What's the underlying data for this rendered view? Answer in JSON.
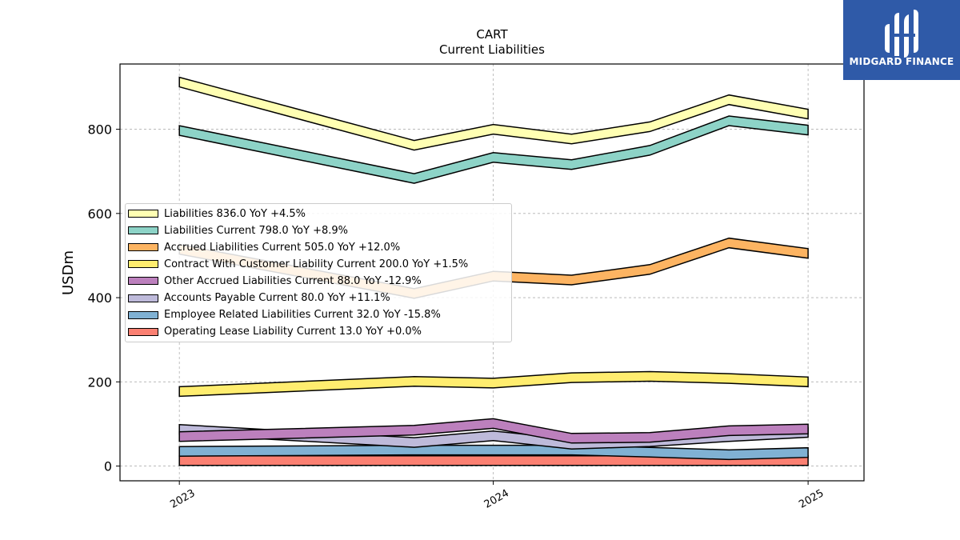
{
  "chart_data": {
    "type": "area",
    "title": "CART",
    "subtitle": "Current  Liabilities",
    "ylabel": "USDm",
    "ylim": [
      -35,
      955
    ],
    "yticks": [
      0,
      200,
      400,
      600,
      800
    ],
    "xticks": [
      "2023",
      "2024",
      "2025"
    ],
    "grid": true,
    "legend_position": "center-left",
    "x": [
      "2023-01-01",
      "2023-10-01",
      "2024-01-01",
      "2024-04-01",
      "2024-07-01",
      "2024-10-01",
      "2025-01-01"
    ],
    "series": [
      {
        "name": "Liabilities",
        "legend": "Liabilities  836.0 YoY +4.5%",
        "color": "#ffffb3",
        "values": [
          912,
          762,
          800,
          777,
          806,
          870,
          836
        ]
      },
      {
        "name": "Liabilities Current",
        "legend": "Liabilities Current  798.0 YoY +8.9%",
        "color": "#8dd3c7",
        "values": [
          797,
          683,
          733,
          716,
          750,
          820,
          798
        ]
      },
      {
        "name": "Accrued Liabilities Current",
        "legend": "Accrued Liabilities Current  505.0 YoY +12.0%",
        "color": "#fdb462",
        "values": [
          515,
          410,
          451,
          442,
          467,
          530,
          505
        ]
      },
      {
        "name": "Contract With Customer Liability Current",
        "legend": "Contract With Customer Liability Current  200.0 YoY +1.5%",
        "color": "#ffed6f",
        "values": [
          177,
          201,
          197,
          210,
          213,
          208,
          200
        ]
      },
      {
        "name": "Other Accrued Liabilities Current",
        "legend": "Other Accrued Liabilities Current  88.0 YoY -12.9%",
        "color": "#bc80bd",
        "values": [
          70,
          85,
          101,
          66,
          68,
          84,
          88
        ]
      },
      {
        "name": "Accounts Payable Current",
        "legend": "Accounts Payable Current  80.0 YoY +11.1%",
        "color": "#bebada",
        "values": [
          87,
          56,
          72,
          52,
          58,
          70,
          80
        ]
      },
      {
        "name": "Employee Related Liabilities Current",
        "legend": "Employee Related Liabilities Current  32.0 YoY -15.8%",
        "color": "#80b1d3",
        "values": [
          35,
          38,
          38,
          38,
          33,
          27,
          32
        ]
      },
      {
        "name": "Operating Lease Liability Current",
        "legend": "Operating Lease Liability Current  13.0 YoY +0.0%",
        "color": "#fb8072",
        "values": [
          13,
          13,
          13,
          13,
          13,
          13,
          13
        ]
      }
    ]
  },
  "logo": {
    "text": "MIDGARD FINANCE",
    "color": "#2f5aa8"
  }
}
